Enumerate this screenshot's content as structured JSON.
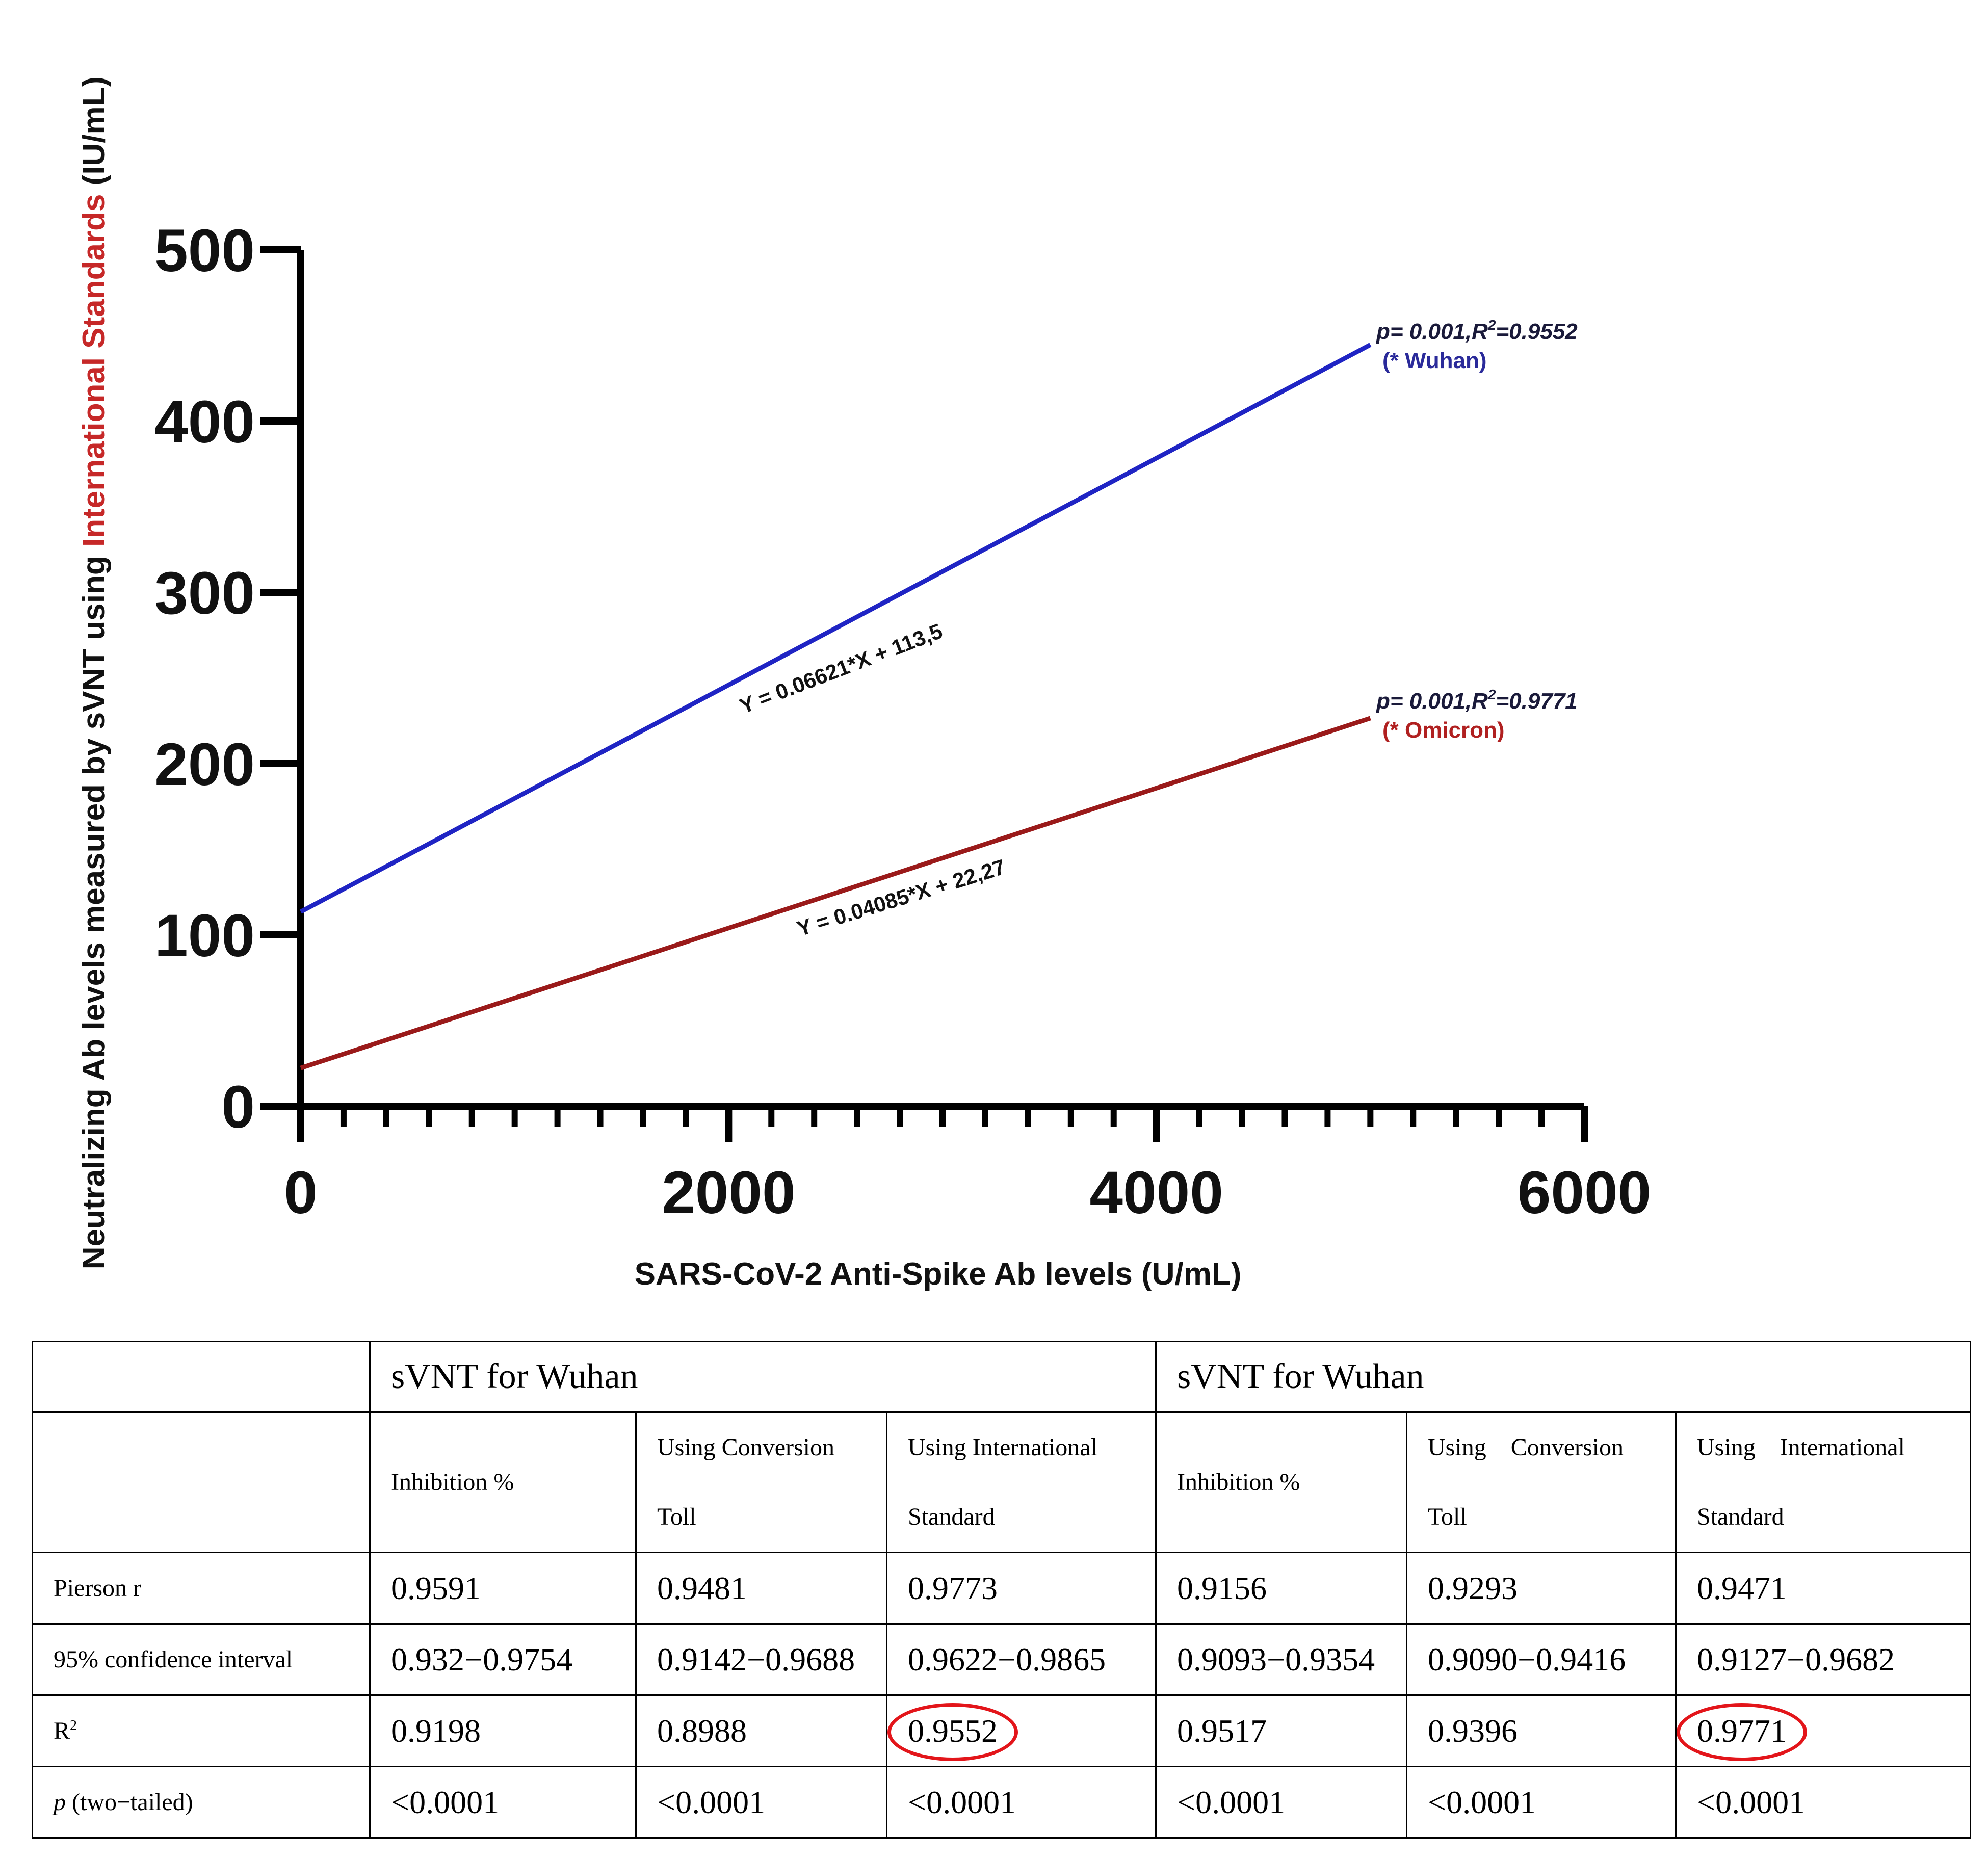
{
  "chart_data": {
    "type": "line",
    "ylabel_parts": [
      "Neutralizing Ab levels measured by sVNT using ",
      "International Standards",
      "  (IU/mL)"
    ],
    "xlabel": "SARS-CoV-2 Anti-Spike Ab levels  (U/mL)",
    "xlim": [
      0,
      6000
    ],
    "ylim": [
      0,
      500
    ],
    "xticks": [
      "0",
      "2000",
      "4000",
      "6000"
    ],
    "yticks": [
      "0",
      "100",
      "200",
      "300",
      "400",
      "500"
    ],
    "x_minor_step": 200,
    "series": [
      {
        "name": "Wuhan",
        "color": "#1f24c4",
        "slope": 0.06621,
        "intercept": 113.5,
        "x": [
          0,
          5000
        ],
        "y": [
          113.5,
          444.55
        ],
        "equation": "Y = 0.06621*X + 113,5",
        "stat_p": "p= 0.001,R",
        "stat_r2": "=0.9552",
        "legend": "(* Wuhan)",
        "legend_color": "#2a2a9a"
      },
      {
        "name": "Omicron",
        "color": "#9a1a1a",
        "slope": 0.04085,
        "intercept": 22.27,
        "x": [
          0,
          5000
        ],
        "y": [
          22.27,
          226.52
        ],
        "equation": "Y = 0.04085*X + 22,27",
        "stat_p": "p= 0.001,R",
        "stat_r2": "=0.9771",
        "legend": "(* Omicron)",
        "legend_color": "#b02020"
      }
    ]
  },
  "table": {
    "group1": "sVNT for Wuhan",
    "group2": "sVNT for Wuhan",
    "sub": {
      "g1c1": [
        "Inhibition %",
        ""
      ],
      "g1c2": [
        "Using Conversion",
        "Toll"
      ],
      "g1c3": [
        "Using International",
        "Standard"
      ],
      "g2c1": [
        "Inhibition %",
        ""
      ],
      "g2c2": [
        "Using    Conversion",
        "Toll"
      ],
      "g2c3": [
        "Using    International",
        "Standard"
      ]
    },
    "rows": {
      "pearson": {
        "label": "Pierson r",
        "values": [
          "0.9591",
          "0.9481",
          "0.9773",
          "0.9156",
          "0.9293",
          "0.9471"
        ]
      },
      "ci": {
        "label": "95% confidence interval",
        "values": [
          "0.932−0.9754",
          "0.9142−0.9688",
          "0.9622−0.9865",
          "0.9093−0.9354",
          "0.9090−0.9416",
          "0.9127−0.9682"
        ]
      },
      "r2": {
        "label": "R",
        "label_sup": "2",
        "values": [
          "0.9198",
          "0.8988",
          "0.9552",
          "0.9517",
          "0.9396",
          "0.9771"
        ]
      },
      "p": {
        "label_italic": "p",
        "label": " (two−tailed)",
        "values": [
          "<0.0001",
          "<0.0001",
          "<0.0001",
          "<0.0001",
          "<0.0001",
          "<0.0001"
        ]
      }
    }
  }
}
